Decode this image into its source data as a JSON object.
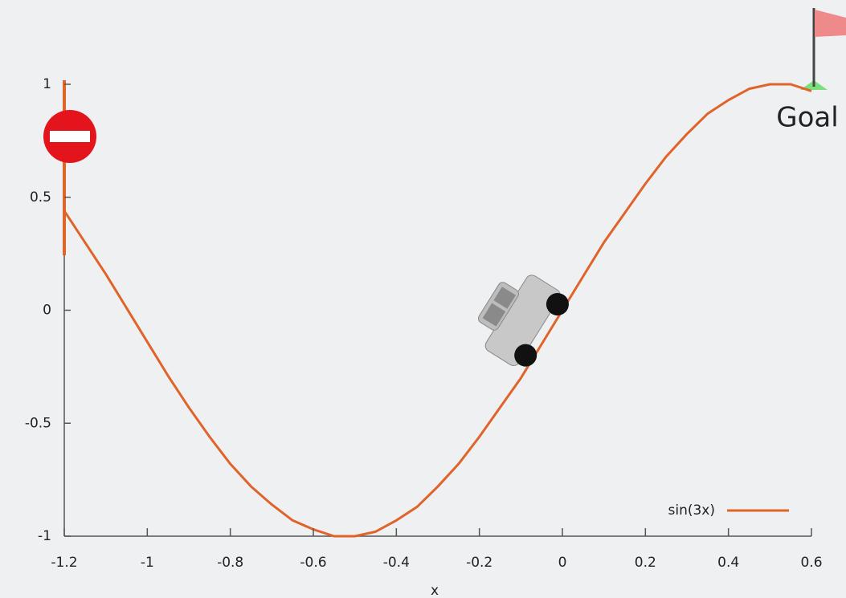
{
  "chart_data": {
    "type": "line",
    "xlabel": "x",
    "annotation": "Goal",
    "x": [
      -1.2,
      -1.15,
      -1.1,
      -1.05,
      -1.0,
      -0.95,
      -0.9,
      -0.85,
      -0.8,
      -0.75,
      -0.7,
      -0.65,
      -0.6,
      -0.55,
      -0.5,
      -0.45,
      -0.4,
      -0.35,
      -0.3,
      -0.25,
      -0.2,
      -0.15,
      -0.1,
      -0.05,
      0,
      0.05,
      0.1,
      0.15,
      0.2,
      0.25,
      0.3,
      0.35,
      0.4,
      0.45,
      0.5,
      0.55,
      0.6
    ],
    "series": [
      {
        "name": "sin(3x)",
        "color": "#e0642a",
        "values": [
          0.44,
          0.3,
          0.16,
          0.01,
          -0.14,
          -0.29,
          -0.43,
          -0.56,
          -0.68,
          -0.78,
          -0.86,
          -0.93,
          -0.97,
          -1.0,
          -1.0,
          -0.98,
          -0.93,
          -0.87,
          -0.78,
          -0.68,
          -0.56,
          -0.43,
          -0.3,
          -0.15,
          0,
          0.15,
          0.3,
          0.43,
          0.56,
          0.68,
          0.78,
          0.87,
          0.93,
          0.98,
          1.0,
          1.0,
          0.97
        ]
      }
    ],
    "xlim": [
      -1.2,
      0.6
    ],
    "ylim": [
      -1,
      1
    ],
    "xticks": [
      -1.2,
      -1,
      -0.8,
      -0.6,
      -0.4,
      -0.2,
      0,
      0.2,
      0.4,
      0.6
    ],
    "yticks": [
      -1,
      -0.5,
      0,
      0.5,
      1
    ],
    "legend": "lower right"
  }
}
